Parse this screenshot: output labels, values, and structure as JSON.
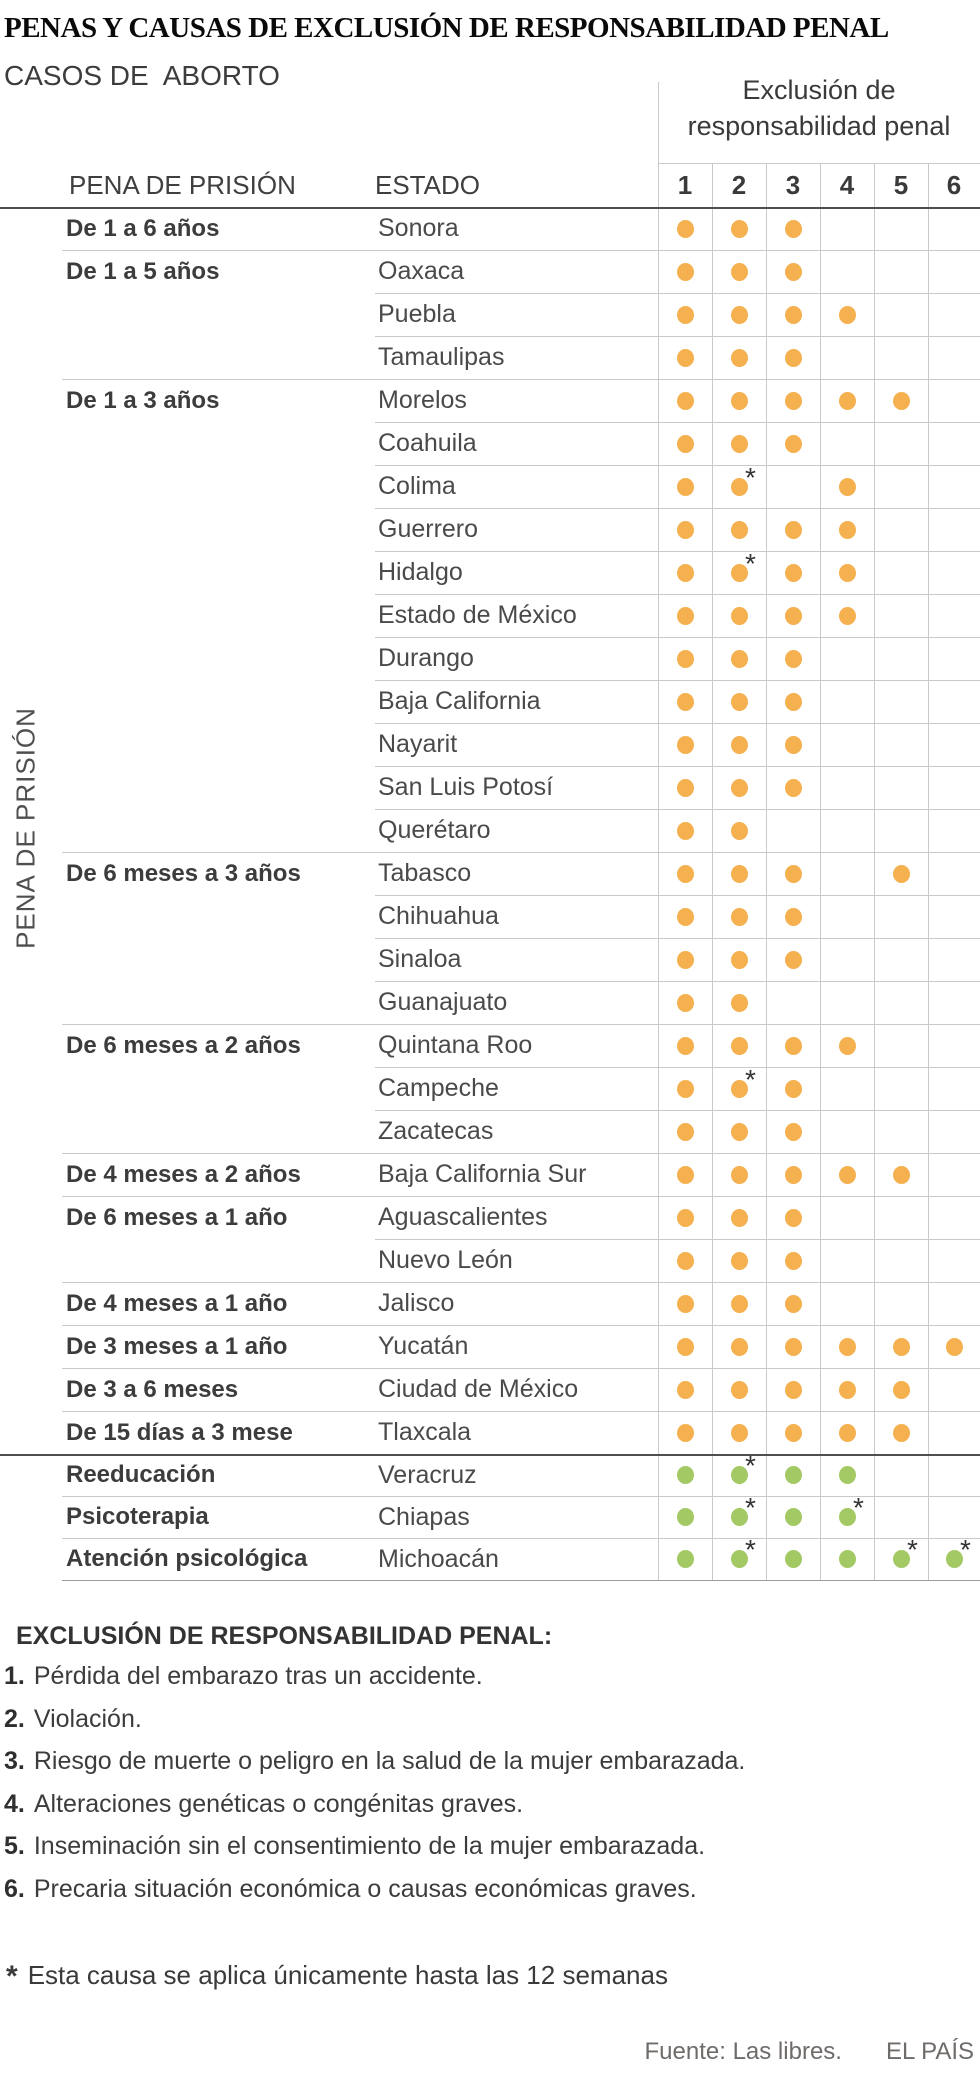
{
  "title": "PENAS Y CAUSAS DE EXCLUSIÓN DE RESPONSABILIDAD PENAL",
  "subtitle": "CASOS DE  ABORTO",
  "matrix_header": {
    "line1": "Exclusión de",
    "line2": "responsabilidad penal"
  },
  "headers": {
    "penalty": "PENA DE PRISIÓN",
    "estado": "ESTADO"
  },
  "axis_label": "PENA DE PRISIÓN",
  "colors": {
    "orange": "#F5B04F",
    "green": "#A3C964",
    "grid_light": "#C9C9C9",
    "rule_dark": "#4E4E4E"
  },
  "chart_data": {
    "type": "table",
    "title": "PENAS Y CAUSAS DE EXCLUSIÓN DE RESPONSABILIDAD PENAL",
    "subtitle": "CASOS DE ABORTO",
    "column_group_label": "Exclusión de responsabilidad penal",
    "columns": [
      "1",
      "2",
      "3",
      "4",
      "5",
      "6"
    ],
    "row_headers": [
      "PENA DE PRISIÓN",
      "ESTADO"
    ],
    "cell_encoding": "0 = no dot, 1 = dot, 2 = dot with asterisk (applies only up to 12 weeks)",
    "sections": [
      {
        "name": "pena-de-prision",
        "dot_color": "#F5B04F",
        "rows": [
          {
            "penalty": "De 1 a 6 años",
            "state": "Sonora",
            "causes": [
              1,
              1,
              1,
              0,
              0,
              0
            ]
          },
          {
            "penalty": "De 1 a 5 años",
            "state": "Oaxaca",
            "causes": [
              1,
              1,
              1,
              0,
              0,
              0
            ]
          },
          {
            "penalty": "",
            "state": "Puebla",
            "causes": [
              1,
              1,
              1,
              1,
              0,
              0
            ]
          },
          {
            "penalty": "",
            "state": "Tamaulipas",
            "causes": [
              1,
              1,
              1,
              0,
              0,
              0
            ]
          },
          {
            "penalty": "De 1 a 3 años",
            "state": "Morelos",
            "causes": [
              1,
              1,
              1,
              1,
              1,
              0
            ]
          },
          {
            "penalty": "",
            "state": "Coahuila",
            "causes": [
              1,
              1,
              1,
              0,
              0,
              0
            ]
          },
          {
            "penalty": "",
            "state": "Colima",
            "causes": [
              1,
              2,
              0,
              1,
              0,
              0
            ]
          },
          {
            "penalty": "",
            "state": "Guerrero",
            "causes": [
              1,
              1,
              1,
              1,
              0,
              0
            ]
          },
          {
            "penalty": "",
            "state": "Hidalgo",
            "causes": [
              1,
              2,
              1,
              1,
              0,
              0
            ]
          },
          {
            "penalty": "",
            "state": "Estado de México",
            "causes": [
              1,
              1,
              1,
              1,
              0,
              0
            ]
          },
          {
            "penalty": "",
            "state": "Durango",
            "causes": [
              1,
              1,
              1,
              0,
              0,
              0
            ]
          },
          {
            "penalty": "",
            "state": "Baja California",
            "causes": [
              1,
              1,
              1,
              0,
              0,
              0
            ]
          },
          {
            "penalty": "",
            "state": "Nayarit",
            "causes": [
              1,
              1,
              1,
              0,
              0,
              0
            ]
          },
          {
            "penalty": "",
            "state": "San Luis Potosí",
            "causes": [
              1,
              1,
              1,
              0,
              0,
              0
            ]
          },
          {
            "penalty": "",
            "state": "Querétaro",
            "causes": [
              1,
              1,
              0,
              0,
              0,
              0
            ]
          },
          {
            "penalty": "De 6 meses a 3 años",
            "state": "Tabasco",
            "causes": [
              1,
              1,
              1,
              0,
              1,
              0
            ]
          },
          {
            "penalty": "",
            "state": "Chihuahua",
            "causes": [
              1,
              1,
              1,
              0,
              0,
              0
            ]
          },
          {
            "penalty": "",
            "state": "Sinaloa",
            "causes": [
              1,
              1,
              1,
              0,
              0,
              0
            ]
          },
          {
            "penalty": "",
            "state": "Guanajuato",
            "causes": [
              1,
              1,
              0,
              0,
              0,
              0
            ]
          },
          {
            "penalty": "De 6 meses a 2 años",
            "state": "Quintana Roo",
            "causes": [
              1,
              1,
              1,
              1,
              0,
              0
            ]
          },
          {
            "penalty": "",
            "state": "Campeche",
            "causes": [
              1,
              2,
              1,
              0,
              0,
              0
            ]
          },
          {
            "penalty": "",
            "state": "Zacatecas",
            "causes": [
              1,
              1,
              1,
              0,
              0,
              0
            ]
          },
          {
            "penalty": "De 4 meses a 2 años",
            "state": "Baja California Sur",
            "causes": [
              1,
              1,
              1,
              1,
              1,
              0
            ]
          },
          {
            "penalty": "De 6 meses a 1 año",
            "state": "Aguascalientes",
            "causes": [
              1,
              1,
              1,
              0,
              0,
              0
            ]
          },
          {
            "penalty": "",
            "state": "Nuevo León",
            "causes": [
              1,
              1,
              1,
              0,
              0,
              0
            ]
          },
          {
            "penalty": "De 4 meses a 1 año",
            "state": "Jalisco",
            "causes": [
              1,
              1,
              1,
              0,
              0,
              0
            ]
          },
          {
            "penalty": "De 3 meses a 1 año",
            "state": "Yucatán",
            "causes": [
              1,
              1,
              1,
              1,
              1,
              1
            ]
          },
          {
            "penalty": "De 3 a 6 meses",
            "state": "Ciudad de México",
            "causes": [
              1,
              1,
              1,
              1,
              1,
              0
            ]
          },
          {
            "penalty": "De 15 días a 3 mese",
            "state": "Tlaxcala",
            "causes": [
              1,
              1,
              1,
              1,
              1,
              0
            ]
          }
        ]
      },
      {
        "name": "medidas-alternativas",
        "dot_color": "#A3C964",
        "rows": [
          {
            "penalty": "Reeducación",
            "state": "Veracruz",
            "causes": [
              1,
              2,
              1,
              1,
              0,
              0
            ]
          },
          {
            "penalty": "Psicoterapia",
            "state": "Chiapas",
            "causes": [
              1,
              2,
              1,
              2,
              0,
              0
            ]
          },
          {
            "penalty": "Atención psicológica",
            "state": "Michoacán",
            "causes": [
              1,
              2,
              1,
              1,
              2,
              2
            ]
          }
        ]
      }
    ]
  },
  "legend": {
    "heading": "EXCLUSIÓN DE RESPONSABILIDAD PENAL:",
    "items": [
      {
        "num": "1.",
        "text": "Pérdida del embarazo tras un accidente."
      },
      {
        "num": "2.",
        "text": "Violación."
      },
      {
        "num": "3.",
        "text": "Riesgo de muerte o peligro en la salud de la mujer embarazada."
      },
      {
        "num": "4.",
        "text": "Alteraciones genéticas o congénitas graves."
      },
      {
        "num": "5.",
        "text": "Inseminación sin el consentimiento de la mujer embarazada."
      },
      {
        "num": "6.",
        "text": "Precaria situación económica o causas económicas graves."
      }
    ]
  },
  "footnote": {
    "star": "*",
    "text": "Esta causa se aplica únicamente hasta las 12 semanas"
  },
  "footer": {
    "source": "Fuente: Las libres.",
    "brand": "EL PAÍS"
  }
}
